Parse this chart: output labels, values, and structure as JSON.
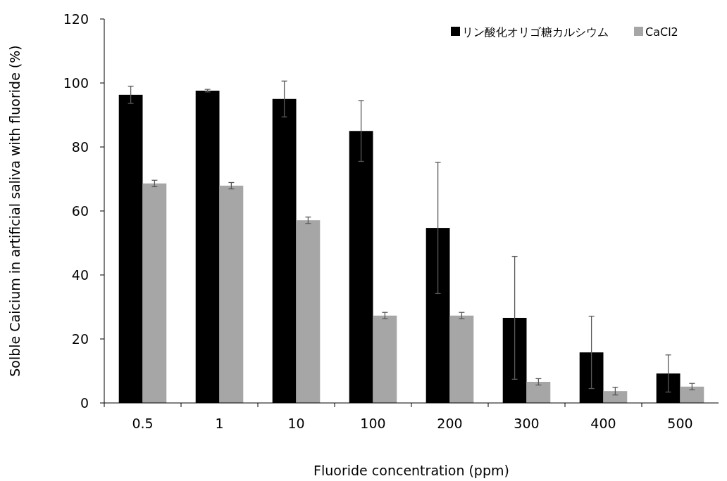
{
  "chart_data": {
    "type": "bar",
    "xlabel": "Fluoride concentration (ppm)",
    "ylabel": "Solble Caicium in artificial saliva with fluoride (%)",
    "categories": [
      "0.5",
      "1",
      "10",
      "100",
      "200",
      "300",
      "400",
      "500"
    ],
    "series": [
      {
        "name": "リン酸化オリゴ糖カルシウム",
        "color": "#000000",
        "values": [
          96.3,
          97.6,
          95,
          85,
          54.7,
          26.6,
          15.8,
          9.2
        ],
        "errors": [
          2.7,
          0.4,
          5.6,
          9.5,
          20.5,
          19.2,
          11.3,
          5.8
        ]
      },
      {
        "name": "CaCl2",
        "color": "#a6a6a6",
        "values": [
          68.6,
          67.9,
          57.1,
          27.3,
          27.3,
          6.6,
          3.7,
          5.1
        ],
        "errors": [
          1,
          1,
          1,
          1,
          1,
          1,
          1.2,
          1
        ]
      }
    ],
    "ylim": [
      0,
      120
    ],
    "yticks": [
      0,
      20,
      40,
      60,
      80,
      100,
      120
    ],
    "legend": "top right"
  }
}
